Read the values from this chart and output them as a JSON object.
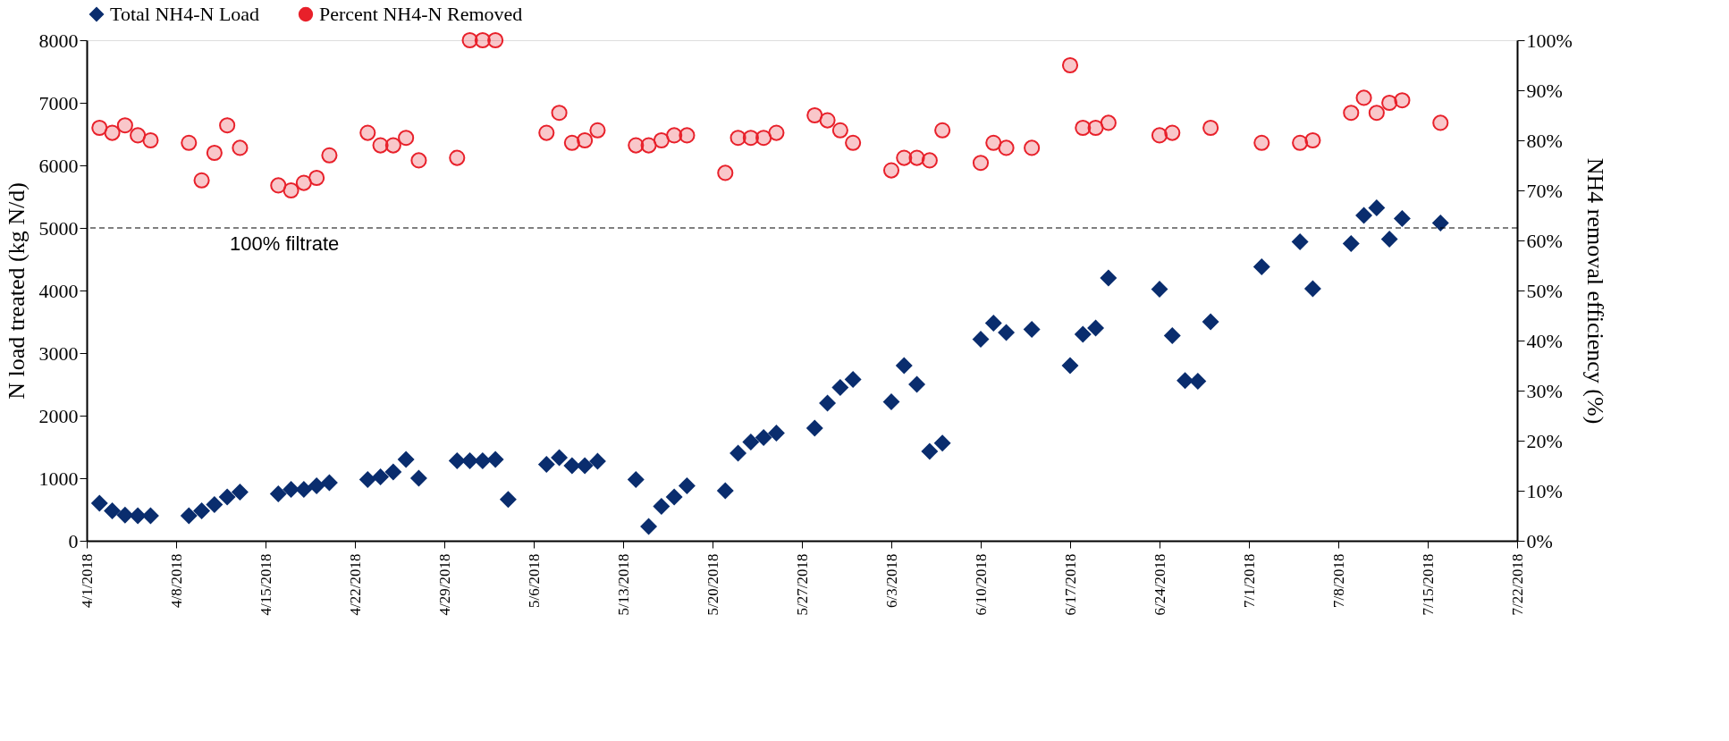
{
  "chart_data": {
    "type": "scatter",
    "ylabel": "N load treated (kg N/d)",
    "y2label": "NH4 removal efficiency (%)",
    "xlim": [
      "2018-04-01",
      "2018-07-22"
    ],
    "xticks": [
      {
        "value": "2018-04-01",
        "label": "4/1/2018"
      },
      {
        "value": "2018-04-08",
        "label": "4/8/2018"
      },
      {
        "value": "2018-04-15",
        "label": "4/15/2018"
      },
      {
        "value": "2018-04-22",
        "label": "4/22/2018"
      },
      {
        "value": "2018-04-29",
        "label": "4/29/2018"
      },
      {
        "value": "2018-05-06",
        "label": "5/6/2018"
      },
      {
        "value": "2018-05-13",
        "label": "5/13/2018"
      },
      {
        "value": "2018-05-20",
        "label": "5/20/2018"
      },
      {
        "value": "2018-05-27",
        "label": "5/27/2018"
      },
      {
        "value": "2018-06-03",
        "label": "6/3/2018"
      },
      {
        "value": "2018-06-10",
        "label": "6/10/2018"
      },
      {
        "value": "2018-06-17",
        "label": "6/17/2018"
      },
      {
        "value": "2018-06-24",
        "label": "6/24/2018"
      },
      {
        "value": "2018-07-01",
        "label": "7/1/2018"
      },
      {
        "value": "2018-07-08",
        "label": "7/8/2018"
      },
      {
        "value": "2018-07-15",
        "label": "7/15/2018"
      },
      {
        "value": "2018-07-22",
        "label": "7/22/2018"
      }
    ],
    "ylim": [
      0,
      8000
    ],
    "yticks": [
      0,
      1000,
      2000,
      3000,
      4000,
      5000,
      6000,
      7000,
      8000
    ],
    "y2lim": [
      0,
      100
    ],
    "y2ticks": [
      {
        "value": 0,
        "label": "0%"
      },
      {
        "value": 10,
        "label": "10%"
      },
      {
        "value": 20,
        "label": "20%"
      },
      {
        "value": 30,
        "label": "30%"
      },
      {
        "value": 40,
        "label": "40%"
      },
      {
        "value": 50,
        "label": "50%"
      },
      {
        "value": 60,
        "label": "60%"
      },
      {
        "value": 70,
        "label": "70%"
      },
      {
        "value": 80,
        "label": "80%"
      },
      {
        "value": 90,
        "label": "90%"
      },
      {
        "value": 100,
        "label": "100%"
      }
    ],
    "legend": "top",
    "grid": false,
    "ref_lines": [
      {
        "axis": "y",
        "value": 5000,
        "label": "100% filtrate",
        "line_style": "dashed",
        "color": "#000000"
      }
    ],
    "series": [
      {
        "name": "Total NH4-N Load",
        "color": "#0a2d6e",
        "marker": "diamond",
        "x": [
          "2018-04-02",
          "2018-04-03",
          "2018-04-04",
          "2018-04-05",
          "2018-04-06",
          "2018-04-09",
          "2018-04-10",
          "2018-04-11",
          "2018-04-12",
          "2018-04-13",
          "2018-04-16",
          "2018-04-17",
          "2018-04-18",
          "2018-04-19",
          "2018-04-20",
          "2018-04-23",
          "2018-04-24",
          "2018-04-25",
          "2018-04-26",
          "2018-04-27",
          "2018-04-30",
          "2018-05-01",
          "2018-05-02",
          "2018-05-03",
          "2018-05-04",
          "2018-05-07",
          "2018-05-08",
          "2018-05-09",
          "2018-05-10",
          "2018-05-11",
          "2018-05-14",
          "2018-05-15",
          "2018-05-16",
          "2018-05-17",
          "2018-05-18",
          "2018-05-21",
          "2018-05-22",
          "2018-05-23",
          "2018-05-24",
          "2018-05-25",
          "2018-05-28",
          "2018-05-29",
          "2018-05-30",
          "2018-05-31",
          "2018-06-03",
          "2018-06-04",
          "2018-06-05",
          "2018-06-06",
          "2018-06-07",
          "2018-06-10",
          "2018-06-11",
          "2018-06-12",
          "2018-06-14",
          "2018-06-17",
          "2018-06-18",
          "2018-06-19",
          "2018-06-20",
          "2018-06-24",
          "2018-06-25",
          "2018-06-26",
          "2018-06-27",
          "2018-06-28",
          "2018-07-02",
          "2018-07-05",
          "2018-07-06",
          "2018-07-09",
          "2018-07-10",
          "2018-07-11",
          "2018-07-12",
          "2018-07-13",
          "2018-07-16"
        ],
        "values": [
          600,
          480,
          410,
          400,
          400,
          400,
          480,
          580,
          700,
          780,
          750,
          820,
          820,
          880,
          930,
          980,
          1020,
          1100,
          1300,
          1000,
          1280,
          1280,
          1280,
          1300,
          660,
          1220,
          1330,
          1200,
          1200,
          1270,
          980,
          230,
          550,
          700,
          880,
          800,
          1400,
          1580,
          1650,
          1720,
          1800,
          2200,
          2450,
          2580,
          2220,
          2800,
          2500,
          1430,
          1560,
          3220,
          3480,
          3330,
          3380,
          2800,
          3300,
          3400,
          4200,
          4020,
          3280,
          2560,
          2550,
          3500,
          4380,
          4780,
          4030,
          4750,
          5200,
          5320,
          4820,
          5150,
          5080
        ]
      },
      {
        "name": "Percent NH4-N Removed",
        "color": "#e8202a",
        "marker": "circle",
        "axis": "y2",
        "x": [
          "2018-04-02",
          "2018-04-03",
          "2018-04-04",
          "2018-04-05",
          "2018-04-06",
          "2018-04-09",
          "2018-04-10",
          "2018-04-11",
          "2018-04-12",
          "2018-04-13",
          "2018-04-16",
          "2018-04-17",
          "2018-04-18",
          "2018-04-19",
          "2018-04-20",
          "2018-04-23",
          "2018-04-24",
          "2018-04-25",
          "2018-04-26",
          "2018-04-27",
          "2018-04-30",
          "2018-05-01",
          "2018-05-02",
          "2018-05-03",
          "2018-05-07",
          "2018-05-08",
          "2018-05-09",
          "2018-05-10",
          "2018-05-11",
          "2018-05-14",
          "2018-05-15",
          "2018-05-16",
          "2018-05-17",
          "2018-05-18",
          "2018-05-21",
          "2018-05-22",
          "2018-05-23",
          "2018-05-24",
          "2018-05-25",
          "2018-05-28",
          "2018-05-29",
          "2018-05-30",
          "2018-05-31",
          "2018-06-03",
          "2018-06-04",
          "2018-06-05",
          "2018-06-06",
          "2018-06-07",
          "2018-06-10",
          "2018-06-11",
          "2018-06-12",
          "2018-06-14",
          "2018-06-17",
          "2018-06-18",
          "2018-06-19",
          "2018-06-20",
          "2018-06-24",
          "2018-06-25",
          "2018-06-28",
          "2018-07-02",
          "2018-07-05",
          "2018-07-06",
          "2018-07-09",
          "2018-07-10",
          "2018-07-11",
          "2018-07-12",
          "2018-07-13",
          "2018-07-16"
        ],
        "values": [
          82.5,
          81.5,
          83,
          81,
          80,
          79.5,
          72,
          77.5,
          83,
          78.5,
          71,
          70,
          71.5,
          72.5,
          77,
          81.5,
          79,
          79,
          80.5,
          76,
          76.5,
          100,
          100,
          100,
          81.5,
          85.5,
          79.5,
          80,
          82,
          79,
          79,
          80,
          81,
          81,
          73.5,
          80.5,
          80.5,
          80.5,
          81.5,
          85,
          84,
          82,
          79.5,
          74,
          76.5,
          76.5,
          76,
          82,
          75.5,
          79.5,
          78.5,
          78.5,
          95,
          82.5,
          82.5,
          83.5,
          81,
          81.5,
          82.5,
          79.5,
          79.5,
          80,
          85.5,
          88.5,
          85.5,
          87.5,
          88,
          83.5
        ]
      }
    ]
  }
}
